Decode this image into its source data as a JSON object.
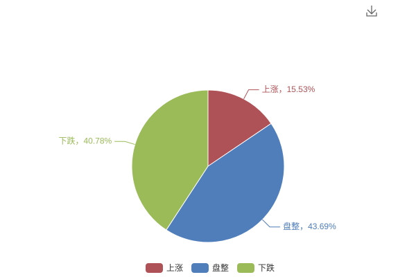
{
  "chart_data": {
    "type": "pie",
    "categories": [
      "上涨",
      "盘整",
      "下跌"
    ],
    "values": [
      15.53,
      43.69,
      40.78
    ],
    "value_labels": [
      "上涨，15.53%",
      "盘整，43.69%",
      "下跌，40.78%"
    ],
    "colors": [
      "#ae5257",
      "#4f7ebb",
      "#9bbb59"
    ]
  }
}
